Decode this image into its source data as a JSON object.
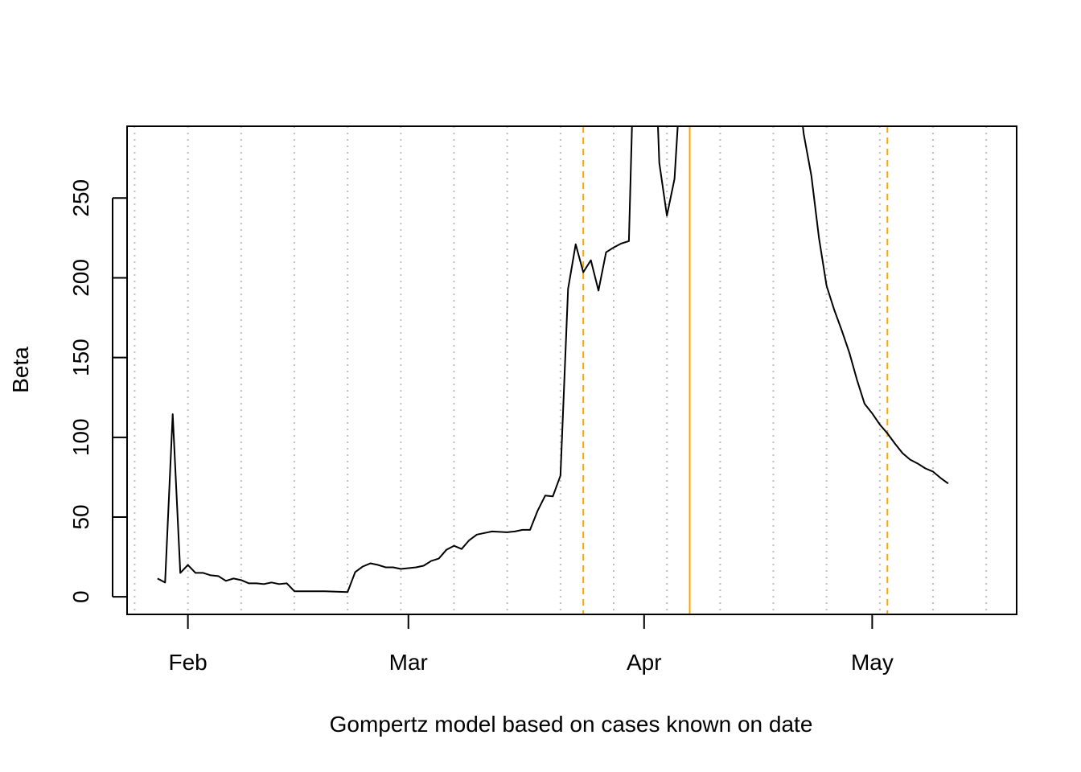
{
  "chart_data": {
    "type": "line",
    "title": "",
    "xlabel": "Gompertz model based on cases known on date",
    "ylabel": "Beta",
    "x_axis": {
      "type": "date",
      "range": [
        "2020-01-24",
        "2020-05-20"
      ],
      "ticks": [
        {
          "date": "2020-02-01",
          "label": "Feb"
        },
        {
          "date": "2020-03-01",
          "label": "Mar"
        },
        {
          "date": "2020-04-01",
          "label": "Apr"
        },
        {
          "date": "2020-05-01",
          "label": "May"
        }
      ]
    },
    "y_axis": {
      "range": [
        -11,
        295
      ],
      "ticks": [
        0,
        50,
        100,
        150,
        200,
        250
      ]
    },
    "grid": {
      "x_dotted_dates": [
        "2020-01-25",
        "2020-02-01",
        "2020-02-08",
        "2020-02-15",
        "2020-02-22",
        "2020-02-29",
        "2020-03-07",
        "2020-03-14",
        "2020-03-21",
        "2020-03-28",
        "2020-04-04",
        "2020-04-11",
        "2020-04-18",
        "2020-04-25",
        "2020-05-02",
        "2020-05-09",
        "2020-05-16"
      ],
      "color": "#bebebe"
    },
    "reference_lines": [
      {
        "date": "2020-03-24",
        "style": "dashed",
        "color": "#ffa500"
      },
      {
        "date": "2020-04-07",
        "style": "solid",
        "color": "#ffa500"
      },
      {
        "date": "2020-05-03",
        "style": "dashed",
        "color": "#ffa500"
      }
    ],
    "series": [
      {
        "color": "#000000",
        "points": [
          [
            "2020-01-28",
            11.5
          ],
          [
            "2020-01-29",
            9.0
          ],
          [
            "2020-01-30",
            114.5
          ],
          [
            "2020-01-31",
            15.0
          ],
          [
            "2020-02-01",
            20.0
          ],
          [
            "2020-02-02",
            15.0
          ],
          [
            "2020-02-03",
            15.0
          ],
          [
            "2020-02-04",
            13.5
          ],
          [
            "2020-02-05",
            13.0
          ],
          [
            "2020-02-06",
            10.0
          ],
          [
            "2020-02-07",
            11.5
          ],
          [
            "2020-02-08",
            10.5
          ],
          [
            "2020-02-09",
            8.5
          ],
          [
            "2020-02-10",
            8.5
          ],
          [
            "2020-02-11",
            8.0
          ],
          [
            "2020-02-12",
            9.0
          ],
          [
            "2020-02-13",
            8.0
          ],
          [
            "2020-02-14",
            8.5
          ],
          [
            "2020-02-15",
            3.5
          ],
          [
            "2020-02-19",
            3.5
          ],
          [
            "2020-02-22",
            3.0
          ],
          [
            "2020-02-23",
            15.5
          ],
          [
            "2020-02-24",
            19.0
          ],
          [
            "2020-02-25",
            21.0
          ],
          [
            "2020-02-26",
            20.0
          ],
          [
            "2020-02-27",
            18.5
          ],
          [
            "2020-02-28",
            18.5
          ],
          [
            "2020-02-29",
            17.5
          ],
          [
            "2020-03-01",
            18.0
          ],
          [
            "2020-03-02",
            18.5
          ],
          [
            "2020-03-03",
            19.5
          ],
          [
            "2020-03-04",
            22.5
          ],
          [
            "2020-03-05",
            24.0
          ],
          [
            "2020-03-06",
            29.5
          ],
          [
            "2020-03-07",
            32.0
          ],
          [
            "2020-03-08",
            30.0
          ],
          [
            "2020-03-09",
            35.5
          ],
          [
            "2020-03-10",
            39.0
          ],
          [
            "2020-03-11",
            40.0
          ],
          [
            "2020-03-12",
            41.0
          ],
          [
            "2020-03-14",
            40.5
          ],
          [
            "2020-03-15",
            41.0
          ],
          [
            "2020-03-16",
            42.0
          ],
          [
            "2020-03-17",
            42.0
          ],
          [
            "2020-03-18",
            54.0
          ],
          [
            "2020-03-19",
            63.5
          ],
          [
            "2020-03-20",
            63.0
          ],
          [
            "2020-03-21",
            76.0
          ],
          [
            "2020-03-22",
            193.0
          ],
          [
            "2020-03-23",
            221.0
          ],
          [
            "2020-03-24",
            203.5
          ],
          [
            "2020-03-25",
            211.0
          ],
          [
            "2020-03-26",
            192.0
          ],
          [
            "2020-03-27",
            216.0
          ],
          [
            "2020-03-28",
            219.0
          ],
          [
            "2020-03-29",
            221.5
          ],
          [
            "2020-03-30",
            223.0
          ],
          [
            "2020-03-31",
            400.0
          ],
          [
            "2020-04-02",
            400.0
          ],
          [
            "2020-04-03",
            272.0
          ],
          [
            "2020-04-04",
            239.0
          ],
          [
            "2020-04-05",
            262.0
          ],
          [
            "2020-04-06",
            340.0
          ],
          [
            "2020-04-21",
            330.0
          ],
          [
            "2020-04-22",
            290.0
          ],
          [
            "2020-04-23",
            264.0
          ],
          [
            "2020-04-24",
            225.0
          ],
          [
            "2020-04-25",
            195.0
          ],
          [
            "2020-04-26",
            180.0
          ],
          [
            "2020-04-27",
            167.0
          ],
          [
            "2020-04-28",
            153.0
          ],
          [
            "2020-04-29",
            136.0
          ],
          [
            "2020-04-30",
            121.0
          ],
          [
            "2020-05-01",
            115.0
          ],
          [
            "2020-05-02",
            108.0
          ],
          [
            "2020-05-03",
            102.5
          ],
          [
            "2020-05-04",
            96.0
          ],
          [
            "2020-05-05",
            90.0
          ],
          [
            "2020-05-06",
            86.0
          ],
          [
            "2020-05-07",
            83.5
          ],
          [
            "2020-05-08",
            80.5
          ],
          [
            "2020-05-09",
            78.5
          ],
          [
            "2020-05-10",
            74.5
          ],
          [
            "2020-05-11",
            71.0
          ]
        ]
      }
    ]
  }
}
